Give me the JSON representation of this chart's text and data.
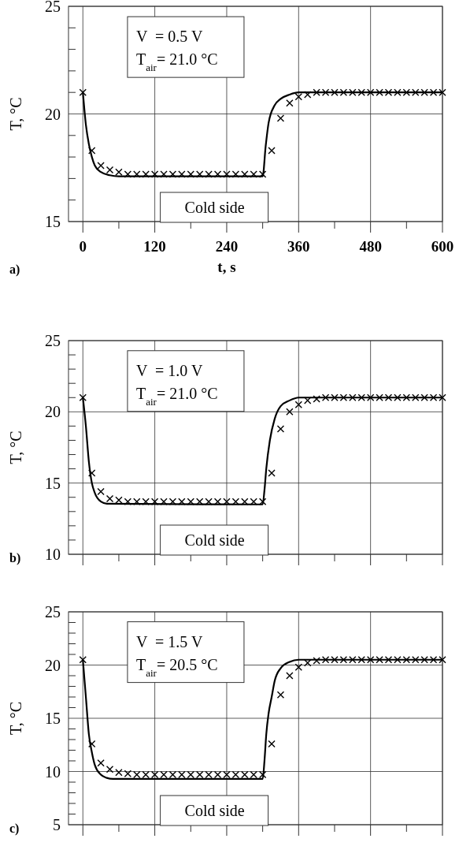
{
  "chart_data": [
    {
      "type": "line",
      "xlabel": "t, s",
      "ylabel": "T, °C",
      "annotations": [
        "a)",
        "V  = 0.5 V",
        "T$_{air}$= 21.0 °C",
        "Cold side"
      ],
      "xlim": [
        -24,
        600
      ],
      "ylim": [
        15,
        25
      ],
      "xticks": [
        0,
        {
          "value": 60,
          "label": null
        },
        120,
        {
          "value": 180,
          "label": null
        },
        240,
        {
          "value": 300,
          "label": null
        },
        360,
        {
          "value": 420,
          "label": null
        },
        480,
        {
          "value": 540,
          "label": null
        },
        600
      ],
      "yticks": [
        15,
        {
          "value": 16,
          "label": null
        },
        {
          "value": 17,
          "label": null
        },
        {
          "value": 18,
          "label": null
        },
        {
          "value": 19,
          "label": null
        },
        20,
        {
          "value": 21,
          "label": null
        },
        {
          "value": 22,
          "label": null
        },
        {
          "value": 23,
          "label": null
        },
        {
          "value": 24,
          "label": null
        },
        25
      ],
      "grid": true,
      "series": [
        {
          "type": "line",
          "color": "#000000",
          "marker": "none",
          "line_style": "solid",
          "x": [
            0,
            5,
            10,
            15,
            20,
            30,
            45,
            60,
            300,
            305,
            310,
            320,
            330,
            345,
            360,
            600
          ],
          "values": [
            21.0,
            19.5,
            18.6,
            18.0,
            17.6,
            17.3,
            17.15,
            17.1,
            17.1,
            18.5,
            19.6,
            20.4,
            20.7,
            20.9,
            21.0,
            21.0
          ]
        },
        {
          "type": "scatter",
          "color": "#000000",
          "marker": "cross",
          "x": [
            0,
            15,
            30,
            45,
            60,
            75,
            90,
            105,
            120,
            135,
            150,
            165,
            180,
            195,
            210,
            225,
            240,
            255,
            270,
            285,
            300,
            315,
            330,
            345,
            360,
            375,
            390,
            405,
            420,
            435,
            450,
            465,
            480,
            495,
            510,
            525,
            540,
            555,
            570,
            585,
            600
          ],
          "values": [
            21.0,
            18.3,
            17.6,
            17.4,
            17.3,
            17.2,
            17.2,
            17.2,
            17.2,
            17.2,
            17.2,
            17.2,
            17.2,
            17.2,
            17.2,
            17.2,
            17.2,
            17.2,
            17.2,
            17.2,
            17.2,
            18.3,
            19.8,
            20.5,
            20.8,
            20.9,
            21.0,
            21.0,
            21.0,
            21.0,
            21.0,
            21.0,
            21.0,
            21.0,
            21.0,
            21.0,
            21.0,
            21.0,
            21.0,
            21.0,
            21.0
          ]
        }
      ]
    },
    {
      "type": "line",
      "ylabel": "T, °C",
      "annotations": [
        "b)",
        "V  = 1.0 V",
        "T$_{air}$= 21.0 °C",
        "Cold side"
      ],
      "xlim": [
        -24,
        600
      ],
      "ylim": [
        10,
        25
      ],
      "tick_labels": "y",
      "xticks": [
        0,
        {
          "value": 60,
          "label": null
        },
        120,
        {
          "value": 180,
          "label": null
        },
        240,
        {
          "value": 300,
          "label": null
        },
        360,
        {
          "value": 420,
          "label": null
        },
        480,
        {
          "value": 540,
          "label": null
        },
        600
      ],
      "yticks": [
        10,
        {
          "value": 11,
          "label": null
        },
        {
          "value": 12,
          "label": null
        },
        {
          "value": 13,
          "label": null
        },
        {
          "value": 14,
          "label": null
        },
        15,
        {
          "value": 16,
          "label": null
        },
        {
          "value": 17,
          "label": null
        },
        {
          "value": 18,
          "label": null
        },
        {
          "value": 19,
          "label": null
        },
        20,
        {
          "value": 21,
          "label": null
        },
        {
          "value": 22,
          "label": null
        },
        {
          "value": 23,
          "label": null
        },
        {
          "value": 24,
          "label": null
        },
        25
      ],
      "grid": true,
      "series": [
        {
          "type": "line",
          "color": "#000000",
          "marker": "none",
          "line_style": "solid",
          "x": [
            0,
            5,
            10,
            15,
            20,
            30,
            40,
            300,
            303,
            306,
            312,
            320,
            330,
            345,
            360,
            600
          ],
          "values": [
            21.0,
            19.0,
            16.5,
            15.0,
            14.3,
            13.7,
            13.55,
            13.5,
            14.5,
            16.0,
            18.0,
            19.5,
            20.4,
            20.8,
            21.0,
            21.0
          ]
        },
        {
          "type": "scatter",
          "color": "#000000",
          "marker": "cross",
          "x": [
            0,
            15,
            30,
            45,
            60,
            75,
            90,
            105,
            120,
            135,
            150,
            165,
            180,
            195,
            210,
            225,
            240,
            255,
            270,
            285,
            300,
            315,
            330,
            345,
            360,
            375,
            390,
            405,
            420,
            435,
            450,
            465,
            480,
            495,
            510,
            525,
            540,
            555,
            570,
            585,
            600
          ],
          "values": [
            21.0,
            15.7,
            14.4,
            13.9,
            13.8,
            13.7,
            13.7,
            13.7,
            13.7,
            13.7,
            13.7,
            13.7,
            13.7,
            13.7,
            13.7,
            13.7,
            13.7,
            13.7,
            13.7,
            13.7,
            13.7,
            15.7,
            18.8,
            20.0,
            20.5,
            20.8,
            20.9,
            21.0,
            21.0,
            21.0,
            21.0,
            21.0,
            21.0,
            21.0,
            21.0,
            21.0,
            21.0,
            21.0,
            21.0,
            21.0,
            21.0
          ]
        }
      ]
    },
    {
      "type": "line",
      "ylabel": "T, °C",
      "annotations": [
        "c)",
        "V  = 1.5 V",
        "T$_{air}$= 20.5 °C",
        "Cold side"
      ],
      "xlim": [
        -24,
        600
      ],
      "ylim": [
        5,
        25
      ],
      "tick_labels": "y",
      "xticks": [
        0,
        {
          "value": 60,
          "label": null
        },
        120,
        {
          "value": 180,
          "label": null
        },
        240,
        {
          "value": 300,
          "label": null
        },
        360,
        {
          "value": 420,
          "label": null
        },
        480,
        {
          "value": 540,
          "label": null
        },
        600
      ],
      "yticks": [
        5,
        {
          "value": 6,
          "label": null
        },
        {
          "value": 7,
          "label": null
        },
        {
          "value": 8,
          "label": null
        },
        {
          "value": 9,
          "label": null
        },
        10,
        {
          "value": 11,
          "label": null
        },
        {
          "value": 12,
          "label": null
        },
        {
          "value": 13,
          "label": null
        },
        {
          "value": 14,
          "label": null
        },
        15,
        {
          "value": 16,
          "label": null
        },
        {
          "value": 17,
          "label": null
        },
        {
          "value": 18,
          "label": null
        },
        {
          "value": 19,
          "label": null
        },
        20,
        {
          "value": 21,
          "label": null
        },
        {
          "value": 22,
          "label": null
        },
        {
          "value": 23,
          "label": null
        },
        {
          "value": 24,
          "label": null
        },
        25
      ],
      "grid": true,
      "series": [
        {
          "type": "line",
          "color": "#000000",
          "marker": "none",
          "line_style": "solid",
          "x": [
            0,
            5,
            10,
            15,
            20,
            30,
            40,
            50,
            300,
            303,
            306,
            310,
            315,
            320,
            330,
            345,
            360,
            600
          ],
          "values": [
            20.5,
            17.0,
            13.5,
            11.8,
            10.6,
            9.7,
            9.4,
            9.3,
            9.3,
            11.0,
            13.5,
            15.5,
            17.0,
            18.5,
            19.7,
            20.3,
            20.5,
            20.5
          ]
        },
        {
          "type": "scatter",
          "color": "#000000",
          "marker": "cross",
          "x": [
            0,
            15,
            30,
            45,
            60,
            75,
            90,
            105,
            120,
            135,
            150,
            165,
            180,
            195,
            210,
            225,
            240,
            255,
            270,
            285,
            300,
            315,
            330,
            345,
            360,
            375,
            390,
            405,
            420,
            435,
            450,
            465,
            480,
            495,
            510,
            525,
            540,
            555,
            570,
            585,
            600
          ],
          "values": [
            20.5,
            12.6,
            10.8,
            10.2,
            9.9,
            9.8,
            9.7,
            9.7,
            9.7,
            9.7,
            9.7,
            9.7,
            9.7,
            9.7,
            9.7,
            9.7,
            9.7,
            9.7,
            9.7,
            9.7,
            9.7,
            12.6,
            17.2,
            19.0,
            19.8,
            20.2,
            20.4,
            20.5,
            20.5,
            20.5,
            20.5,
            20.5,
            20.5,
            20.5,
            20.5,
            20.5,
            20.5,
            20.5,
            20.5,
            20.5,
            20.5
          ]
        }
      ]
    }
  ]
}
